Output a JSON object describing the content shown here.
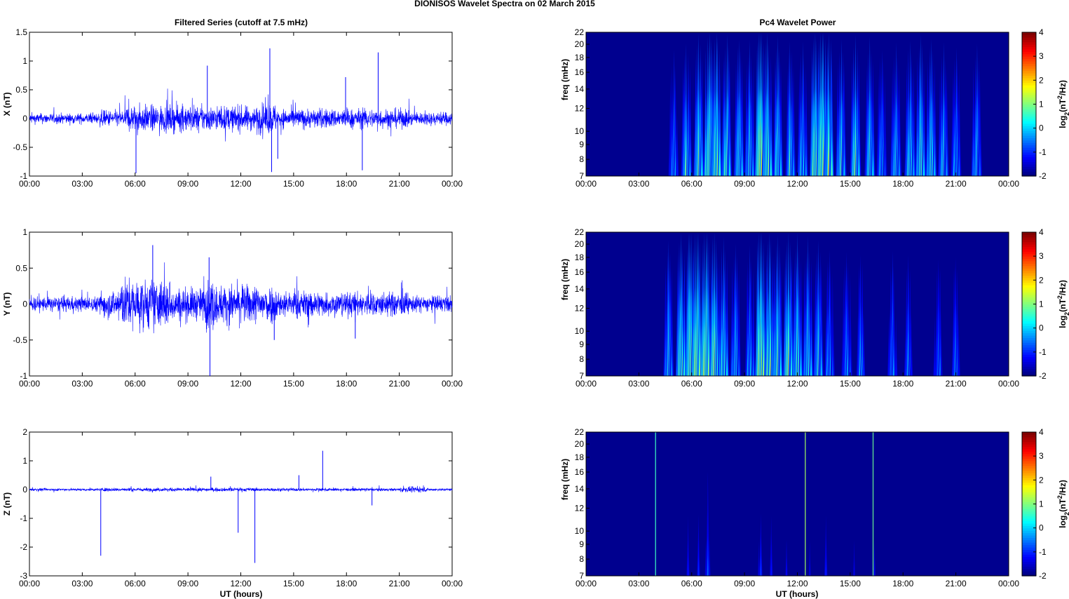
{
  "figure_title": "DIONISOS Wavelet Spectra on 02 March     2015",
  "left_title": "Filtered Series (cutoff at 7.5 mHz)",
  "right_title": "Pc4 Wavelet Power",
  "time_ticks": [
    "00:00",
    "03:00",
    "06:00",
    "09:00",
    "12:00",
    "15:00",
    "18:00",
    "21:00",
    "00:00"
  ],
  "xlabel": "UT (hours)",
  "freq_label": "freq (mHz)",
  "freq_ticks": [
    "22",
    "20",
    "18",
    "16",
    "14",
    "12",
    "10",
    "9",
    "8",
    "7"
  ],
  "cbar_ticks": [
    "4",
    "3",
    "2",
    "1",
    "0",
    "-1",
    "-2"
  ],
  "cbar_label": {
    "base": "log",
    "sub": "2",
    "open": "(nT",
    "sup": "2",
    "close": "/Hz)"
  },
  "colors": {
    "series": "#0000ff",
    "background": "#00008f"
  },
  "chart_data": [
    {
      "type": "line",
      "component": "X",
      "ylabel": "X (nT)",
      "ylim": [
        -1,
        1.5
      ],
      "yticks": [
        "1.5",
        "1",
        "0.5",
        "0",
        "-0.5",
        "-1"
      ],
      "xlim_hours": [
        0,
        24
      ],
      "base_noise": 0.06,
      "activity": [
        [
          0,
          4,
          1.0
        ],
        [
          4,
          5.5,
          1.6
        ],
        [
          5.5,
          9.5,
          2.6
        ],
        [
          9.5,
          13,
          2.4
        ],
        [
          13,
          14,
          3.0
        ],
        [
          14,
          18,
          1.9
        ],
        [
          18,
          21.5,
          1.9
        ],
        [
          21.5,
          24,
          1.3
        ]
      ],
      "spikes": [
        [
          6.05,
          -0.95
        ],
        [
          10.1,
          0.92
        ],
        [
          13.65,
          1.22
        ],
        [
          13.75,
          -0.93
        ],
        [
          18.9,
          -0.9
        ],
        [
          19.8,
          1.15
        ],
        [
          17.95,
          0.72
        ],
        [
          14.1,
          -0.7
        ]
      ]
    },
    {
      "type": "line",
      "component": "Y",
      "ylabel": "Y (nT)",
      "ylim": [
        -1,
        1
      ],
      "yticks": [
        "1",
        "0.5",
        "0",
        "-0.5",
        "-1"
      ],
      "xlim_hours": [
        0,
        24
      ],
      "base_noise": 0.07,
      "activity": [
        [
          0,
          4,
          1.0
        ],
        [
          4,
          5,
          1.8
        ],
        [
          5,
          8,
          3.3
        ],
        [
          8,
          10,
          2.2
        ],
        [
          10,
          10.5,
          3.4
        ],
        [
          10.5,
          14,
          2.6
        ],
        [
          14,
          16.5,
          1.8
        ],
        [
          16.5,
          21.5,
          1.6
        ],
        [
          21.5,
          24,
          1.1
        ]
      ],
      "spikes": [
        [
          7.0,
          0.82
        ],
        [
          10.25,
          -1.0
        ],
        [
          10.2,
          0.65
        ],
        [
          18.5,
          -0.48
        ],
        [
          13.9,
          -0.5
        ]
      ]
    },
    {
      "type": "line",
      "component": "Z",
      "ylabel": "Z (nT)",
      "ylim": [
        -3,
        2
      ],
      "yticks": [
        "2",
        "1",
        "0",
        "-1",
        "-2",
        "-3"
      ],
      "xlim_hours": [
        0,
        24
      ],
      "base_noise": 0.03,
      "activity": [
        [
          0,
          4,
          1.0
        ],
        [
          4,
          13,
          1.4
        ],
        [
          13,
          17,
          1.2
        ],
        [
          17,
          21,
          1.1
        ],
        [
          21,
          22.5,
          2.0
        ],
        [
          22.5,
          24,
          1.0
        ]
      ],
      "spikes": [
        [
          4.05,
          -2.3
        ],
        [
          11.85,
          -1.5
        ],
        [
          12.8,
          -2.55
        ],
        [
          16.65,
          1.35
        ],
        [
          19.45,
          -0.55
        ],
        [
          10.3,
          0.45
        ],
        [
          15.3,
          0.5
        ]
      ]
    },
    {
      "type": "heatmap",
      "component": "X",
      "ylabel": "freq (mHz)",
      "zlabel": "log2(nT^2/Hz)",
      "ylim_mhz": [
        7,
        22
      ],
      "zlim": [
        -2,
        4
      ],
      "xlim_hours": [
        0,
        24
      ],
      "bursts": [
        [
          5.0,
          1.2
        ],
        [
          5.7,
          2.0
        ],
        [
          6.4,
          2.6
        ],
        [
          7.0,
          3.2
        ],
        [
          7.4,
          3.0
        ],
        [
          8.0,
          2.5
        ],
        [
          8.7,
          2.3
        ],
        [
          9.3,
          2.0
        ],
        [
          9.9,
          3.9
        ],
        [
          10.3,
          2.8
        ],
        [
          10.9,
          2.5
        ],
        [
          11.6,
          2.0
        ],
        [
          12.3,
          1.9
        ],
        [
          13.0,
          3.2
        ],
        [
          13.4,
          3.9
        ],
        [
          13.8,
          3.0
        ],
        [
          14.5,
          2.2
        ],
        [
          15.3,
          2.4
        ],
        [
          16.1,
          2.2
        ],
        [
          16.8,
          1.5
        ],
        [
          17.6,
          1.8
        ],
        [
          18.4,
          2.2
        ],
        [
          19.0,
          2.6
        ],
        [
          19.6,
          2.3
        ],
        [
          20.3,
          1.8
        ],
        [
          21.0,
          1.6
        ],
        [
          22.2,
          1.8
        ]
      ]
    },
    {
      "type": "heatmap",
      "component": "Y",
      "ylabel": "freq (mHz)",
      "zlabel": "log2(nT^2/Hz)",
      "ylim_mhz": [
        7,
        22
      ],
      "zlim": [
        -2,
        4
      ],
      "xlim_hours": [
        0,
        24
      ],
      "bursts": [
        [
          4.7,
          2.0
        ],
        [
          5.4,
          2.8
        ],
        [
          5.9,
          3.4
        ],
        [
          6.3,
          3.6
        ],
        [
          6.8,
          3.7
        ],
        [
          7.3,
          3.1
        ],
        [
          7.8,
          2.4
        ],
        [
          8.5,
          1.8
        ],
        [
          9.3,
          1.6
        ],
        [
          9.9,
          3.8
        ],
        [
          10.4,
          3.0
        ],
        [
          10.9,
          2.7
        ],
        [
          11.5,
          3.0
        ],
        [
          12.0,
          2.6
        ],
        [
          12.6,
          2.3
        ],
        [
          13.2,
          2.2
        ],
        [
          13.8,
          1.4
        ],
        [
          14.8,
          1.3
        ],
        [
          15.6,
          1.1
        ],
        [
          17.4,
          1.1
        ],
        [
          18.3,
          0.9
        ],
        [
          20.0,
          0.7
        ],
        [
          21.0,
          0.8
        ]
      ]
    },
    {
      "type": "heatmap",
      "component": "Z",
      "ylabel": "freq (mHz)",
      "zlabel": "log2(nT^2/Hz)",
      "ylim_mhz": [
        7,
        22
      ],
      "zlim": [
        -2,
        4
      ],
      "xlim_hours": [
        0,
        24
      ],
      "bursts": [
        [
          5.8,
          -0.8
        ],
        [
          6.4,
          -0.7
        ],
        [
          6.9,
          -0.3
        ],
        [
          9.9,
          -0.4
        ],
        [
          10.5,
          -0.8
        ],
        [
          11.4,
          -0.9
        ],
        [
          12.7,
          -1.0
        ],
        [
          13.6,
          -0.9
        ],
        [
          15.2,
          -1.2
        ],
        [
          16.4,
          -1.2
        ],
        [
          20.5,
          -1.4
        ]
      ],
      "lines": [
        [
          3.95,
          0.6
        ],
        [
          12.45,
          1.2
        ],
        [
          16.3,
          0.9
        ]
      ]
    }
  ]
}
